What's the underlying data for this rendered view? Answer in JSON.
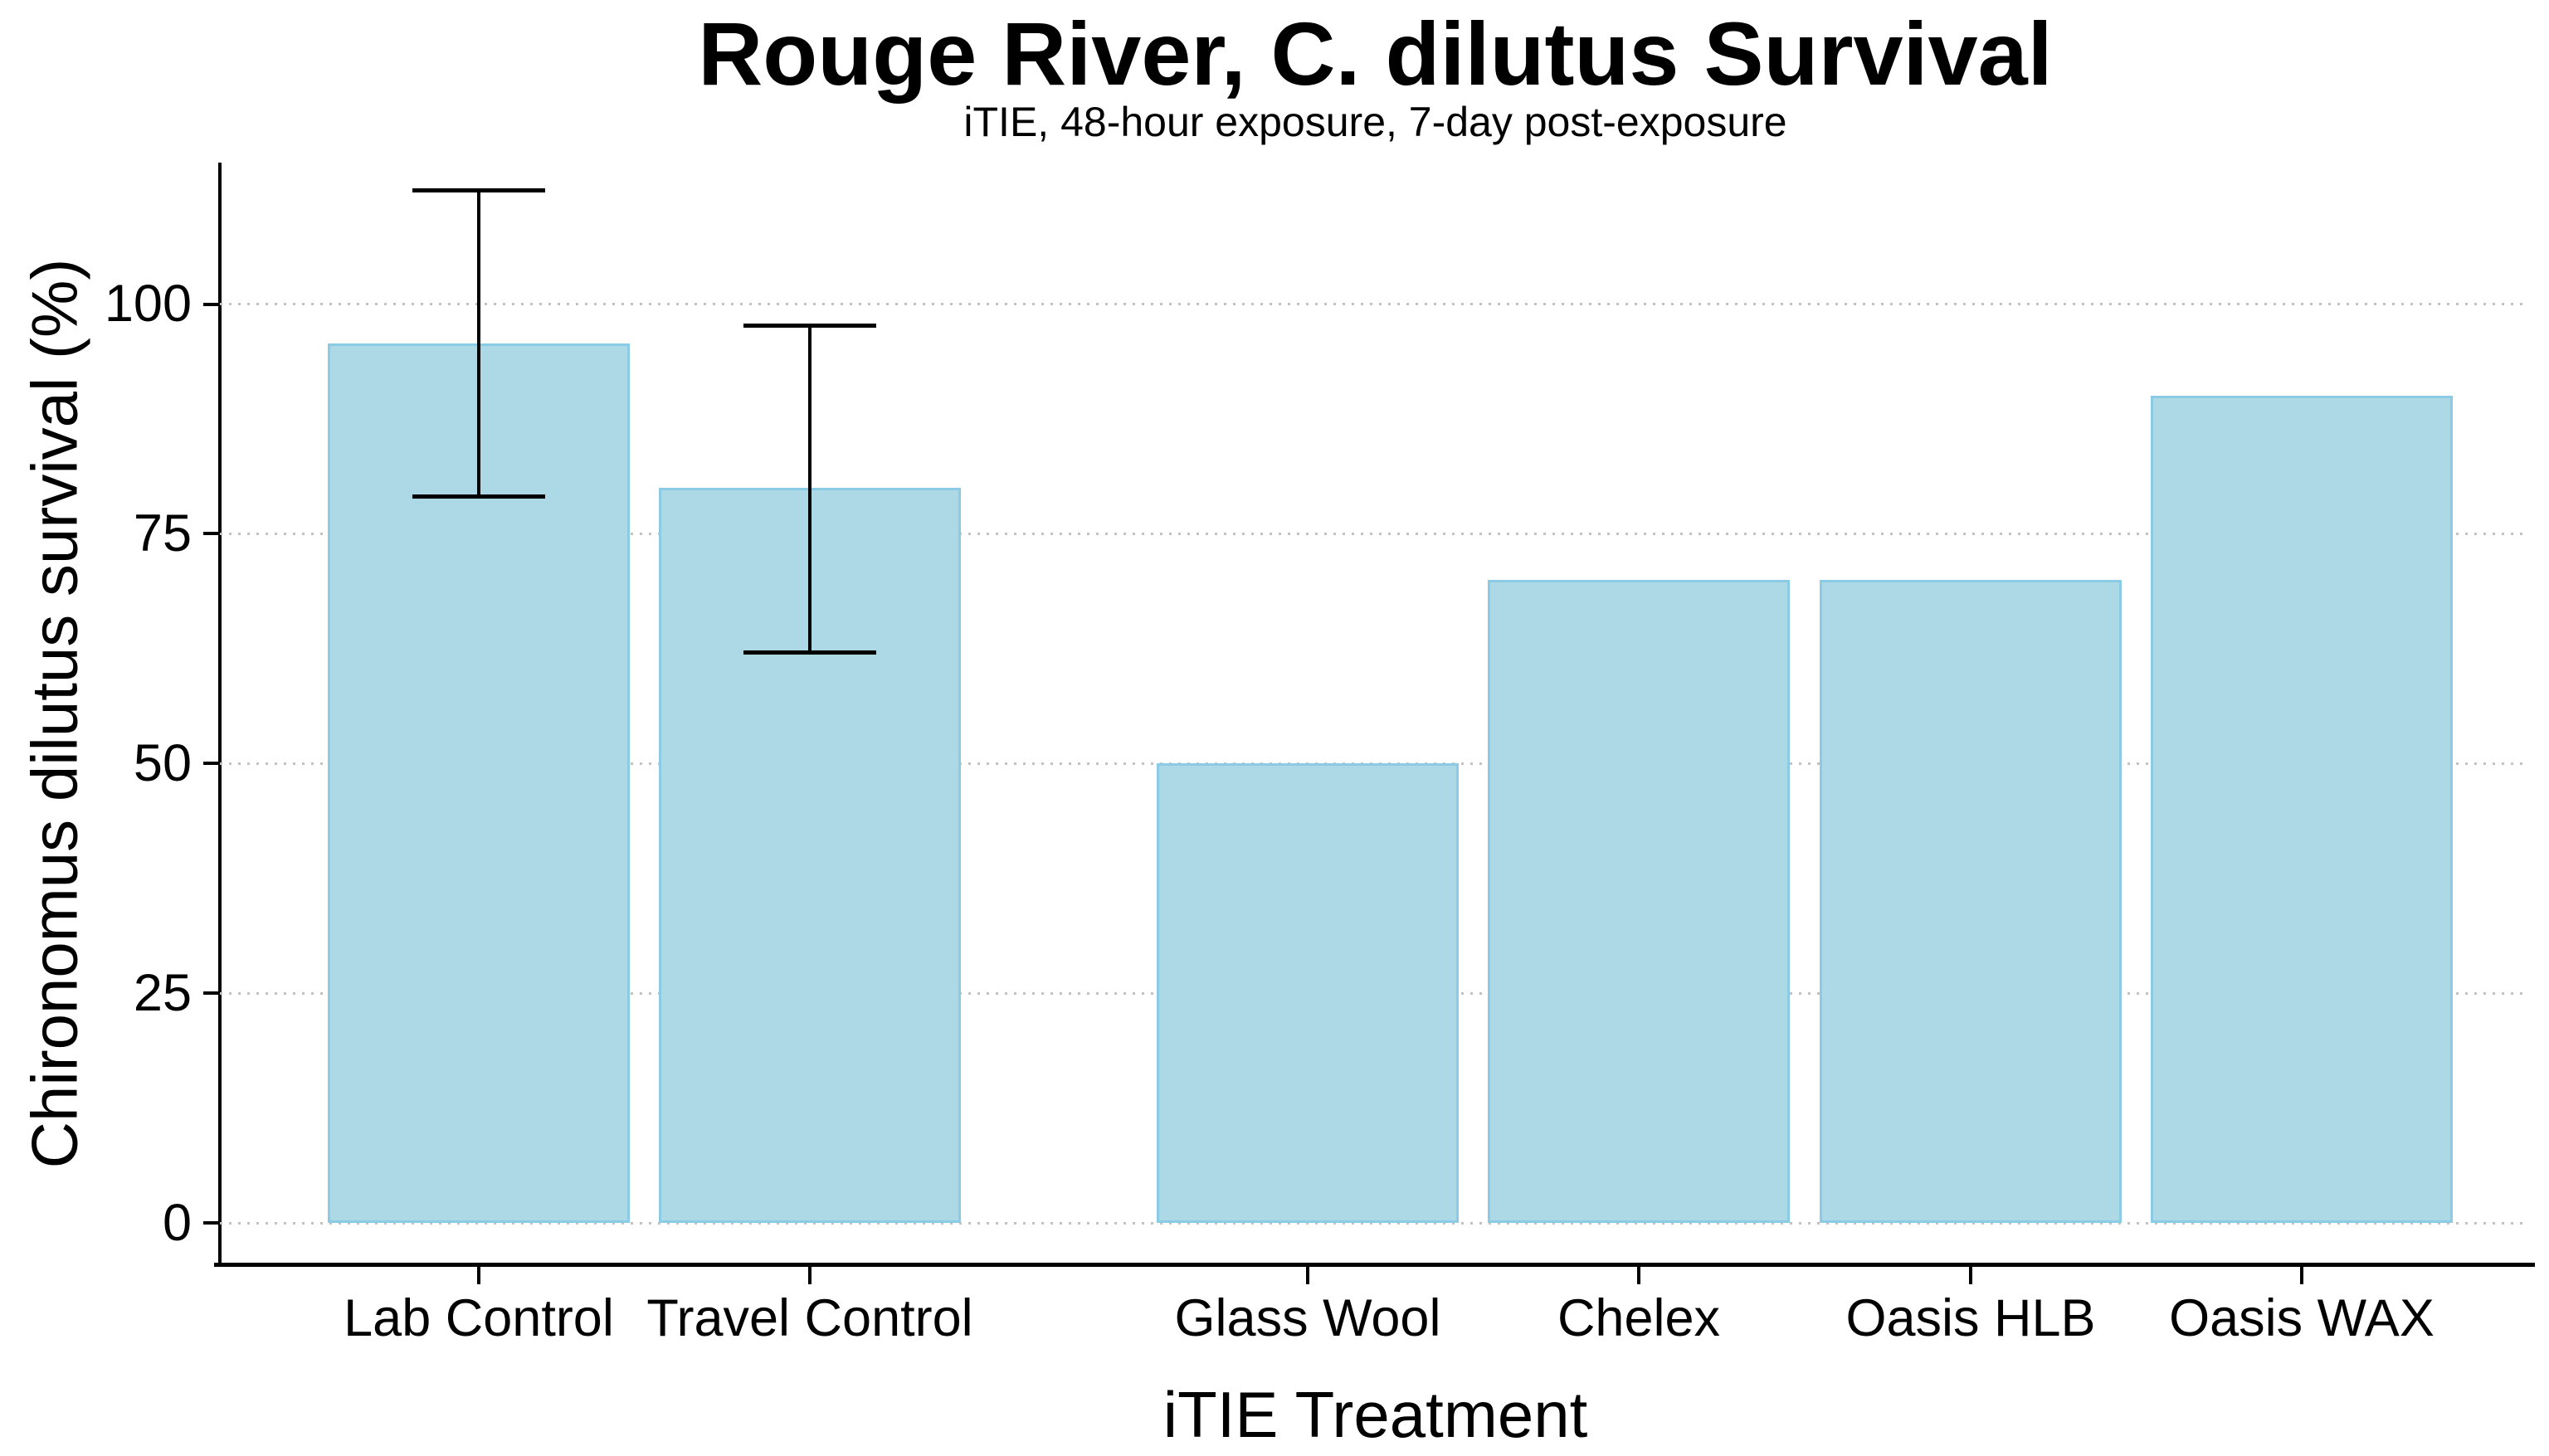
{
  "chart_data": {
    "type": "bar",
    "title": "Rouge River, C. dilutus Survival",
    "subtitle": "iTIE, 48-hour exposure, 7-day post-exposure",
    "xlabel": "iTIE Treatment",
    "ylabel": "Chironomus dilutus survival (%)",
    "categories": [
      "Lab Control",
      "Travel Control",
      "Glass Wool",
      "Chelex",
      "Oasis HLB",
      "Oasis WAX"
    ],
    "values": [
      95.7,
      80,
      50,
      70,
      70,
      90
    ],
    "error_low": [
      79.0,
      62.0,
      null,
      null,
      null,
      null
    ],
    "error_high": [
      112.4,
      97.7,
      null,
      null,
      null,
      null
    ],
    "yticks": [
      0,
      25,
      50,
      75,
      100
    ],
    "ylim_panel": [
      -4.5,
      115.4
    ],
    "x_positions": [
      1,
      2,
      3.5,
      4.5,
      5.5,
      6.5
    ],
    "xlim": [
      0.22,
      7.19
    ],
    "grid": "horizontal-dotted",
    "legend": "none",
    "colors": {
      "bar_fill": "#ADD8E6",
      "bar_border": "#8CCBE6",
      "axis": "#000000",
      "grid_dots": "#C2C2C2",
      "text": "#000000",
      "background": "#FFFFFF"
    }
  }
}
